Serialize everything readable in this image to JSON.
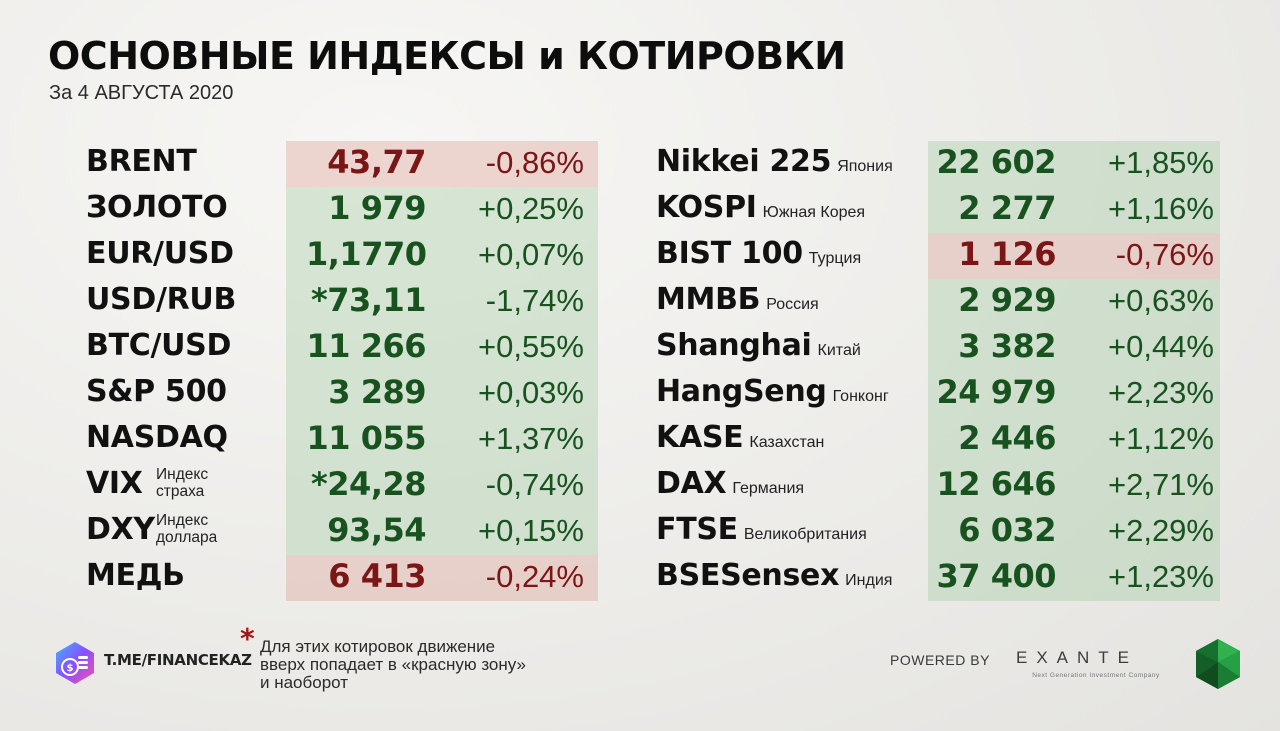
{
  "title": "ОСНОВНЫЕ ИНДЕКСЫ и КОТИРОВКИ",
  "subtitle": "За 4 АВГУСТА 2020",
  "colors": {
    "up_bg": "#d6e7d4",
    "down_bg": "#ecd1cb",
    "up_text": "#18531f",
    "down_text": "#7a1616",
    "asterisk": "#a31515"
  },
  "left_table": [
    {
      "name": "BRENT",
      "value": "43,77",
      "change": "-0,86%",
      "direction": "down"
    },
    {
      "name": "ЗОЛОТО",
      "value": "1 979",
      "change": "+0,25%",
      "direction": "up"
    },
    {
      "name": "EUR/USD",
      "value": "1,1770",
      "change": "+0,07%",
      "direction": "up"
    },
    {
      "name": "USD/RUB",
      "value": "*73,11",
      "change": "-1,74%",
      "direction": "up"
    },
    {
      "name": "BTC/USD",
      "value": "11 266",
      "change": "+0,55%",
      "direction": "up"
    },
    {
      "name": "S&P 500",
      "value": "3 289",
      "change": "+0,03%",
      "direction": "up"
    },
    {
      "name": "NASDAQ",
      "value": "11 055",
      "change": "+1,37%",
      "direction": "up"
    },
    {
      "name": "VIX",
      "note": "Индекс страха",
      "value": "*24,28",
      "change": "-0,74%",
      "direction": "up"
    },
    {
      "name": "DXY",
      "note": "Индекс доллара",
      "value": "93,54",
      "change": "+0,15%",
      "direction": "up"
    },
    {
      "name": "МЕДЬ",
      "value": "6 413",
      "change": "-0,24%",
      "direction": "down"
    }
  ],
  "right_table": [
    {
      "name": "Nikkei 225",
      "country": "Япония",
      "value": "22 602",
      "change": "+1,85%",
      "direction": "up"
    },
    {
      "name": "KOSPI",
      "country": "Южная Корея",
      "value": "2 277",
      "change": "+1,16%",
      "direction": "up"
    },
    {
      "name": "BIST 100",
      "country": "Турция",
      "value": "1 126",
      "change": "-0,76%",
      "direction": "down"
    },
    {
      "name": "ММВБ",
      "country": "Россия",
      "value": "2 929",
      "change": "+0,63%",
      "direction": "up"
    },
    {
      "name": "Shanghai",
      "country": "Китай",
      "value": "3 382",
      "change": "+0,44%",
      "direction": "up"
    },
    {
      "name": "HangSeng",
      "country": "Гонконг",
      "value": "24 979",
      "change": "+2,23%",
      "direction": "up"
    },
    {
      "name": "KASE",
      "country": "Казахстан",
      "value": "2 446",
      "change": "+1,12%",
      "direction": "up"
    },
    {
      "name": "DAX",
      "country": "Германия",
      "value": "12 646",
      "change": "+2,71%",
      "direction": "up"
    },
    {
      "name": "FTSE",
      "country": "Великобритания",
      "value": "6 032",
      "change": "+2,29%",
      "direction": "up"
    },
    {
      "name": "BSESensex",
      "country": "Индия",
      "value": "37 400",
      "change": "+1,23%",
      "direction": "up"
    }
  ],
  "footer": {
    "link": "T.ME/FINANCEKAZ",
    "asterisk": "*",
    "footnote_lines": [
      "Для этих котировок движение",
      "вверх попадает в «красную зону»",
      "и наоборот"
    ],
    "powered_by": "POWERED BY",
    "brand": "EXANTE",
    "brand_tagline": "Next Generation Investment Company",
    "logo_icon": "financekaz-logo-icon",
    "brand_icon": "exante-emerald-icon"
  }
}
